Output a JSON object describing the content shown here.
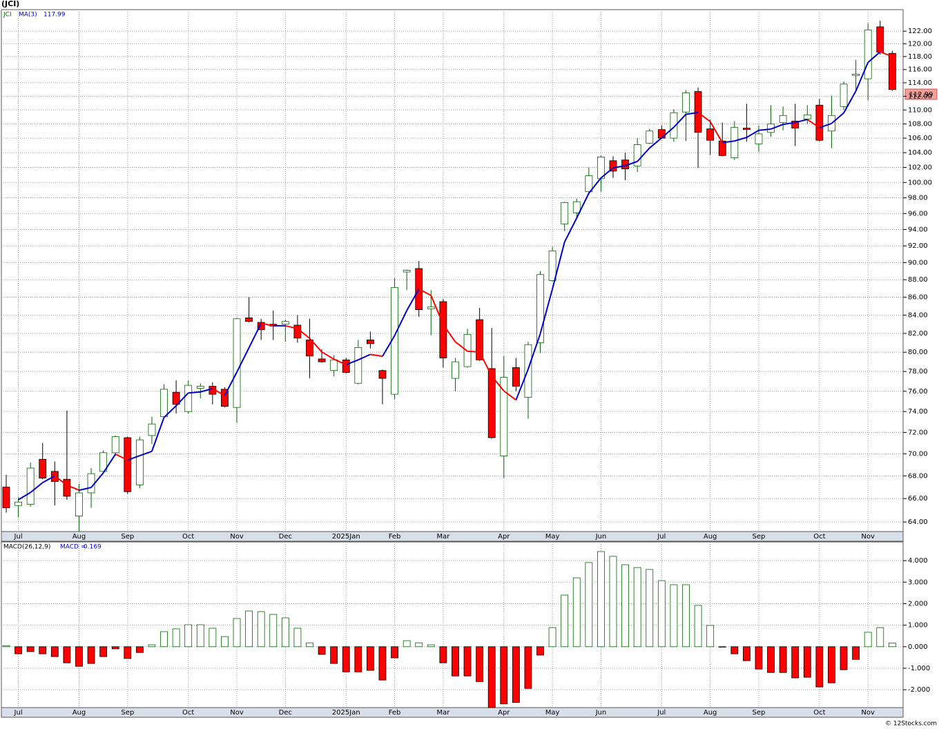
{
  "title": "(JCI)",
  "footer": "© 12Stocks.com",
  "chart_data": [
    {
      "type": "candlestick",
      "series_name": "JCI",
      "ma_name": "MA(3)",
      "log": true,
      "grid": true,
      "up_color": "#006400",
      "down_color": "#ff0000",
      "ma_up_color": "#0000cc",
      "ma_down_color": "#ff0000",
      "categories": [
        null,
        "Jul",
        null,
        null,
        null,
        null,
        "Aug",
        null,
        null,
        null,
        "Sep",
        null,
        null,
        null,
        null,
        "Oct",
        null,
        null,
        null,
        "Nov",
        null,
        null,
        null,
        "Dec",
        null,
        null,
        null,
        null,
        "2025Jan",
        null,
        null,
        null,
        "Feb",
        null,
        null,
        null,
        "Mar",
        null,
        null,
        null,
        null,
        "Apr",
        null,
        null,
        null,
        "May",
        null,
        null,
        null,
        "Jun",
        null,
        null,
        null,
        null,
        "Jul",
        null,
        null,
        null,
        "Aug",
        null,
        null,
        null,
        "Sep",
        null,
        null,
        null,
        null,
        "Oct",
        null,
        null,
        null,
        "Nov",
        null,
        null
      ],
      "open": [
        67.0,
        65.4,
        65.5,
        69.5,
        68.4,
        67.7,
        64.5,
        66.5,
        68.4,
        70.1,
        71.5,
        67.2,
        71.7,
        73.5,
        75.9,
        74.0,
        76.3,
        76.5,
        76.2,
        74.4,
        83.7,
        83.2,
        83.0,
        83.0,
        82.9,
        81.3,
        79.3,
        78.1,
        79.2,
        76.8,
        81.3,
        78.1,
        75.7,
        88.9,
        89.3,
        84.7,
        85.5,
        77.3,
        78.5,
        83.5,
        78.3,
        69.8,
        78.4,
        75.4,
        81.0,
        87.9,
        94.7,
        96.1,
        98.8,
        100.5,
        102.9,
        103.0,
        102.2,
        105.3,
        107.2,
        106.0,
        109.7,
        112.7,
        107.3,
        105.6,
        103.3,
        107.4,
        105.2,
        106.8,
        108.2,
        108.4,
        108.7,
        110.7,
        107.0,
        110.5,
        115.1,
        114.6,
        122.7,
        118.5
      ],
      "high": [
        68.1,
        66.1,
        69.2,
        71.0,
        69.3,
        74.1,
        67.3,
        68.7,
        70.3,
        71.7,
        71.6,
        71.6,
        73.5,
        76.7,
        77.1,
        77.1,
        76.8,
        76.9,
        76.4,
        83.7,
        86.0,
        83.6,
        84.5,
        83.5,
        84.0,
        83.6,
        80.3,
        79.7,
        79.4,
        81.3,
        82.2,
        78.2,
        88.2,
        89.2,
        90.2,
        86.8,
        85.8,
        79.4,
        82.5,
        84.8,
        82.6,
        79.6,
        79.4,
        81.1,
        89.0,
        91.9,
        97.5,
        97.9,
        102.0,
        103.6,
        103.5,
        104.0,
        106.0,
        107.3,
        107.8,
        110.1,
        112.9,
        113.3,
        108.6,
        108.2,
        108.4,
        110.9,
        107.8,
        110.7,
        110.5,
        110.9,
        110.7,
        111.6,
        112.1,
        114.2,
        117.5,
        123.3,
        123.7,
        118.9
      ],
      "low": [
        64.8,
        64.4,
        65.3,
        67.7,
        65.4,
        65.9,
        63.2,
        65.2,
        68.3,
        69.8,
        66.4,
        66.9,
        70.9,
        73.4,
        73.8,
        73.8,
        75.3,
        74.7,
        74.4,
        72.9,
        83.2,
        81.3,
        81.3,
        81.1,
        81.0,
        77.3,
        78.9,
        77.5,
        77.8,
        76.7,
        80.4,
        74.7,
        75.2,
        86.8,
        83.8,
        81.8,
        78.4,
        76.0,
        78.4,
        79.1,
        71.4,
        67.8,
        76.0,
        73.3,
        79.9,
        87.8,
        93.8,
        95.4,
        98.4,
        98.8,
        100.6,
        100.3,
        101.4,
        105.2,
        105.9,
        105.5,
        105.6,
        101.9,
        103.7,
        103.5,
        103.0,
        105.5,
        104.1,
        106.2,
        107.1,
        104.9,
        108.0,
        105.5,
        104.6,
        110.0,
        112.7,
        111.4,
        118.3,
        112.8
      ],
      "close": [
        65.2,
        65.7,
        68.7,
        67.8,
        67.5,
        66.2,
        66.5,
        68.2,
        70.1,
        71.6,
        66.6,
        71.3,
        72.8,
        76.2,
        74.7,
        76.6,
        76.5,
        75.7,
        74.5,
        83.6,
        83.3,
        82.4,
        82.8,
        83.3,
        81.5,
        79.6,
        79.0,
        79.2,
        77.9,
        80.5,
        80.9,
        77.3,
        87.1,
        89.1,
        84.6,
        84.9,
        79.4,
        79.0,
        81.9,
        79.2,
        71.5,
        77.4,
        76.5,
        80.8,
        88.6,
        91.4,
        97.4,
        97.5,
        100.9,
        103.4,
        101.5,
        101.8,
        105.1,
        107.0,
        106.0,
        109.6,
        112.5,
        106.8,
        105.7,
        103.6,
        107.5,
        107.2,
        106.6,
        108.0,
        109.2,
        107.4,
        109.3,
        105.7,
        109.2,
        113.8,
        115.3,
        122.2,
        118.7,
        112.99
      ],
      "ma": [
        null,
        65.9,
        66.53,
        67.4,
        68.0,
        67.17,
        66.73,
        66.97,
        68.27,
        69.97,
        69.43,
        69.83,
        70.23,
        73.43,
        74.57,
        75.83,
        75.93,
        76.27,
        75.57,
        77.93,
        80.47,
        83.1,
        82.83,
        82.83,
        82.53,
        81.47,
        80.03,
        79.27,
        78.7,
        79.2,
        79.77,
        79.57,
        81.77,
        84.5,
        86.93,
        86.2,
        82.97,
        81.1,
        80.1,
        80.03,
        77.53,
        76.03,
        75.13,
        78.23,
        81.97,
        86.93,
        92.47,
        95.43,
        98.6,
        100.6,
        101.93,
        102.23,
        102.8,
        104.63,
        106.03,
        107.53,
        109.37,
        109.63,
        108.33,
        105.37,
        105.6,
        106.1,
        107.1,
        107.27,
        107.93,
        108.2,
        108.63,
        107.47,
        108.07,
        109.57,
        112.77,
        117.1,
        118.73,
        117.99
      ],
      "ylim": [
        63.2,
        125.5
      ],
      "yticks": [
        {
          "value": 64,
          "label": "64.00"
        },
        {
          "value": 66,
          "label": "66.00"
        },
        {
          "value": 68,
          "label": "68.00"
        },
        {
          "value": 70,
          "label": "70.00"
        },
        {
          "value": 72,
          "label": "72.00"
        },
        {
          "value": 74,
          "label": "74.00"
        },
        {
          "value": 76,
          "label": "76.00"
        },
        {
          "value": 78,
          "label": "78.00"
        },
        {
          "value": 80,
          "label": "80.00"
        },
        {
          "value": 82,
          "label": "82.00"
        },
        {
          "value": 84,
          "label": "84.00"
        },
        {
          "value": 86,
          "label": "86.00"
        },
        {
          "value": 88,
          "label": "88.00"
        },
        {
          "value": 90,
          "label": "90.00"
        },
        {
          "value": 92,
          "label": "92.00"
        },
        {
          "value": 94,
          "label": "94.00"
        },
        {
          "value": 96,
          "label": "96.00"
        },
        {
          "value": 98,
          "label": "98.00"
        },
        {
          "value": 100,
          "label": "100.00"
        },
        {
          "value": 102,
          "label": "102.00"
        },
        {
          "value": 104,
          "label": "104.00"
        },
        {
          "value": 106,
          "label": "106.00"
        },
        {
          "value": 108,
          "label": "108.00"
        },
        {
          "value": 110,
          "label": "110.00"
        },
        {
          "value": 112,
          "label": "112.00"
        },
        {
          "value": 114,
          "label": "114.00"
        },
        {
          "value": 116,
          "label": "116.00"
        },
        {
          "value": 118,
          "label": "118.00"
        },
        {
          "value": 120,
          "label": "120.00"
        },
        {
          "value": 122,
          "label": "122.00"
        }
      ]
    },
    {
      "type": "bar",
      "name": "MACD(26,12,9)",
      "current_label": "MACD =",
      "grid": true,
      "up_color": "#006400",
      "down_color": "#ff0000",
      "categories": [
        null,
        "Jul",
        null,
        null,
        null,
        null,
        "Aug",
        null,
        null,
        null,
        "Sep",
        null,
        null,
        null,
        null,
        "Oct",
        null,
        null,
        null,
        "Nov",
        null,
        null,
        null,
        "Dec",
        null,
        null,
        null,
        null,
        "2025Jan",
        null,
        null,
        null,
        "Feb",
        null,
        null,
        null,
        "Mar",
        null,
        null,
        null,
        null,
        "Apr",
        null,
        null,
        null,
        "May",
        null,
        null,
        null,
        "Jun",
        null,
        null,
        null,
        null,
        "Jul",
        null,
        null,
        null,
        "Aug",
        null,
        null,
        null,
        "Sep",
        null,
        null,
        null,
        null,
        "Oct",
        null,
        null,
        null,
        "Nov",
        null,
        null
      ],
      "values": [
        0.05,
        -0.33,
        -0.23,
        -0.33,
        -0.46,
        -0.75,
        -0.91,
        -0.78,
        -0.46,
        -0.1,
        -0.55,
        -0.27,
        0.09,
        0.7,
        0.83,
        1.02,
        1.02,
        0.86,
        0.47,
        1.31,
        1.66,
        1.63,
        1.5,
        1.34,
        0.86,
        0.18,
        -0.36,
        -0.78,
        -1.17,
        -1.17,
        -1.1,
        -1.55,
        -0.52,
        0.28,
        0.18,
        0.09,
        -0.75,
        -1.36,
        -1.36,
        -1.62,
        -2.85,
        -2.66,
        -2.59,
        -1.94,
        -0.39,
        0.89,
        2.4,
        3.2,
        3.91,
        4.42,
        4.2,
        3.81,
        3.68,
        3.59,
        3.07,
        2.88,
        2.88,
        1.92,
        0.99,
        -0.02,
        -0.33,
        -0.65,
        -1.04,
        -1.2,
        -1.2,
        -1.45,
        -1.42,
        -1.87,
        -1.68,
        -1.07,
        -0.59,
        0.67,
        0.89,
        0.169
      ],
      "ylim": [
        -2.83,
        4.87
      ],
      "yticks": [
        {
          "value": -2,
          "label": "-2.000"
        },
        {
          "value": -1,
          "label": "-1.000"
        },
        {
          "value": 0,
          "label": "0.000"
        },
        {
          "value": 1,
          "label": "1.000"
        },
        {
          "value": 2,
          "label": "2.000"
        },
        {
          "value": 3,
          "label": "3.000"
        },
        {
          "value": 4,
          "label": "4.000"
        }
      ]
    }
  ]
}
